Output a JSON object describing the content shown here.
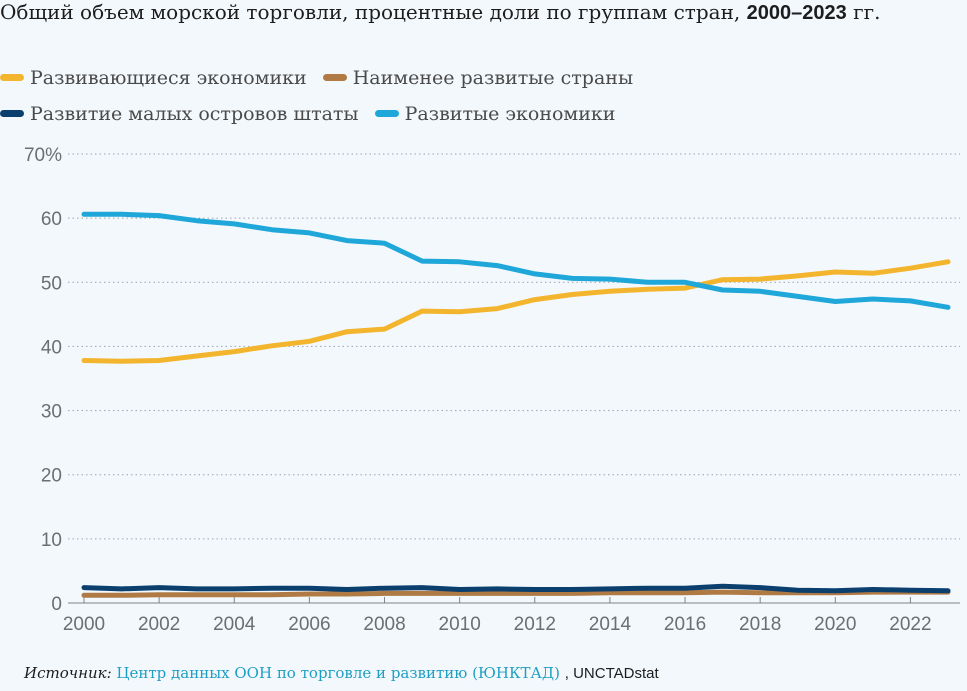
{
  "title": {
    "text": "Общий объем морской торговли, процентные доли по группам стран,",
    "years": "2000–2023",
    "suffix": "гг."
  },
  "source": {
    "label": "Источник:",
    "link_text": "Центр данных ООН по торговле и развитию (ЮНКТАД)",
    "rest": ", UNCTADstat"
  },
  "colors": {
    "developing": "#f3b52d",
    "ldc": "#b07a45",
    "sids": "#0b3f6e",
    "developed": "#1ea7d8"
  },
  "chart_data": {
    "type": "line",
    "title": "Общий объем морской торговли, процентные доли по группам стран, 2000–2023 гг.",
    "xlabel": "",
    "ylabel": "",
    "x": [
      2000,
      2001,
      2002,
      2003,
      2004,
      2005,
      2006,
      2007,
      2008,
      2009,
      2010,
      2011,
      2012,
      2013,
      2014,
      2015,
      2016,
      2017,
      2018,
      2019,
      2020,
      2021,
      2022,
      2023
    ],
    "xticks": [
      "2000",
      "2002",
      "2004",
      "2006",
      "2008",
      "2010",
      "2012",
      "2014",
      "2016",
      "2018",
      "2020",
      "2022"
    ],
    "xtick_values": [
      2000,
      2002,
      2004,
      2006,
      2008,
      2010,
      2012,
      2014,
      2016,
      2018,
      2020,
      2022
    ],
    "yticks": [
      "0",
      "10",
      "20",
      "30",
      "40",
      "50",
      "60",
      "70%"
    ],
    "ytick_values": [
      0,
      10,
      20,
      30,
      40,
      50,
      60,
      70
    ],
    "xlim": [
      2000,
      2023
    ],
    "ylim": [
      0,
      70
    ],
    "grid": true,
    "legend_position": "top",
    "series": [
      {
        "key": "developing",
        "name": "Развивающиеся экономики",
        "values": [
          37.8,
          37.7,
          37.8,
          38.5,
          39.2,
          40.1,
          40.8,
          42.3,
          42.7,
          45.5,
          45.4,
          45.9,
          47.3,
          48.1,
          48.6,
          48.9,
          49.1,
          50.4,
          50.5,
          51.0,
          51.6,
          51.4,
          52.2,
          53.2
        ]
      },
      {
        "key": "ldc",
        "name": "Наименее развитые страны",
        "values": [
          1.2,
          1.2,
          1.3,
          1.3,
          1.3,
          1.3,
          1.4,
          1.4,
          1.5,
          1.5,
          1.5,
          1.5,
          1.5,
          1.5,
          1.6,
          1.6,
          1.6,
          1.7,
          1.6,
          1.6,
          1.6,
          1.7,
          1.7,
          1.7
        ]
      },
      {
        "key": "sids",
        "name": "Развитие малых островов штаты",
        "values": [
          2.4,
          2.2,
          2.4,
          2.2,
          2.2,
          2.3,
          2.3,
          2.1,
          2.3,
          2.4,
          2.1,
          2.2,
          2.1,
          2.1,
          2.2,
          2.3,
          2.3,
          2.6,
          2.4,
          2.0,
          1.9,
          2.1,
          2.0,
          1.9
        ]
      },
      {
        "key": "developed",
        "name": "Развитые экономики",
        "values": [
          60.6,
          60.6,
          60.4,
          59.6,
          59.1,
          58.2,
          57.7,
          56.5,
          56.1,
          53.3,
          53.2,
          52.6,
          51.3,
          50.6,
          50.5,
          50.0,
          50.0,
          48.8,
          48.6,
          47.8,
          47.0,
          47.4,
          47.1,
          46.1
        ]
      }
    ]
  }
}
